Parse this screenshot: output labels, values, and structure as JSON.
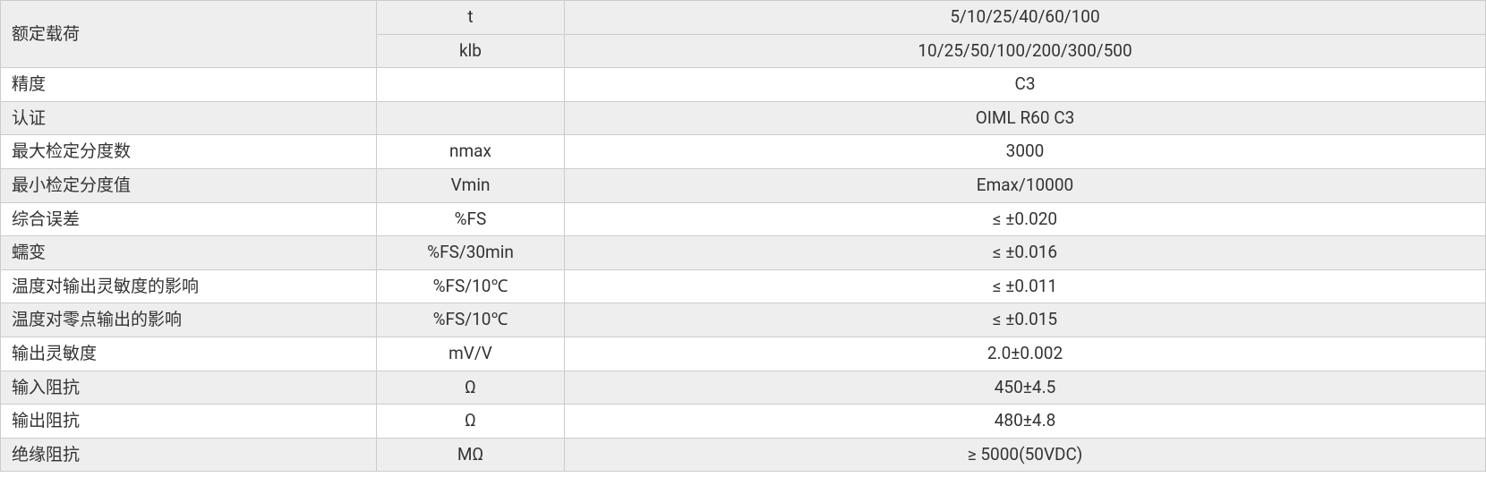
{
  "table": {
    "colors": {
      "alt_bg": "#eeeeee",
      "white_bg": "#ffffff",
      "border": "#cccccc",
      "text": "#333333"
    },
    "rated_load": {
      "label": "额定载荷",
      "sub1": {
        "unit": "t",
        "value": "5/10/25/40/60/100"
      },
      "sub2": {
        "unit": "klb",
        "value": "10/25/50/100/200/300/500"
      }
    },
    "rows": [
      {
        "label": "精度",
        "unit": "",
        "value": "C3"
      },
      {
        "label": "认证",
        "unit": "",
        "value": "OIML R60 C3"
      },
      {
        "label": "最大检定分度数",
        "unit": "nmax",
        "value": "3000"
      },
      {
        "label": "最小检定分度值",
        "unit": "Vmin",
        "value": "Emax/10000"
      },
      {
        "label": "综合误差",
        "unit": "%FS",
        "value": "≤ ±0.020"
      },
      {
        "label": "蠕变",
        "unit": "%FS/30min",
        "value": "≤ ±0.016"
      },
      {
        "label": "温度对输出灵敏度的影响",
        "unit": "%FS/10℃",
        "value": "≤ ±0.011"
      },
      {
        "label": "温度对零点输出的影响",
        "unit": "%FS/10℃",
        "value": "≤ ±0.015"
      },
      {
        "label": "输出灵敏度",
        "unit": "mV/V",
        "value": "2.0±0.002"
      },
      {
        "label": "输入阻抗",
        "unit": "Ω",
        "value": "450±4.5"
      },
      {
        "label": "输出阻抗",
        "unit": "Ω",
        "value": "480±4.8"
      },
      {
        "label": "绝缘阻抗",
        "unit": "MΩ",
        "value": "≥ 5000(50VDC)"
      }
    ]
  }
}
